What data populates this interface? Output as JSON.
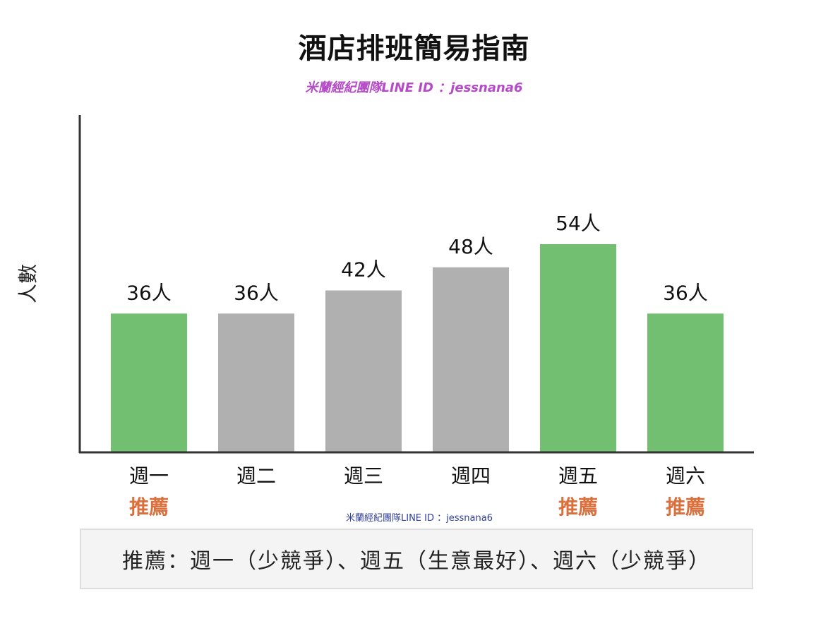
{
  "title": "酒店排班簡易指南",
  "subtitle": "米蘭經紀團隊LINE ID ：jessnana6",
  "watermark": "米蘭經紀團隊LINE ID ：jessnana6",
  "note": "推薦：週一（少競爭）、週五（生意最好）、週六（少競爭）",
  "colors": {
    "recommended": "#72bf72",
    "normal": "#b0b0b0",
    "axis": "#333333",
    "recommend_text": "#d9703e",
    "subtitle": "#b54bc6",
    "watermark": "#2f3f9a"
  },
  "chart_data": {
    "type": "bar",
    "title": "酒店排班簡易指南",
    "ylabel": "人數",
    "xlabel": "",
    "categories": [
      "週一",
      "週二",
      "週三",
      "週四",
      "週五",
      "週六"
    ],
    "values": [
      36,
      36,
      42,
      48,
      54,
      36
    ],
    "value_labels": [
      "36人",
      "36人",
      "42人",
      "48人",
      "54人",
      "36人"
    ],
    "recommended": [
      true,
      false,
      false,
      false,
      true,
      true
    ],
    "recommend_label": "推薦",
    "ylim": [
      0,
      60
    ],
    "grid": false
  }
}
